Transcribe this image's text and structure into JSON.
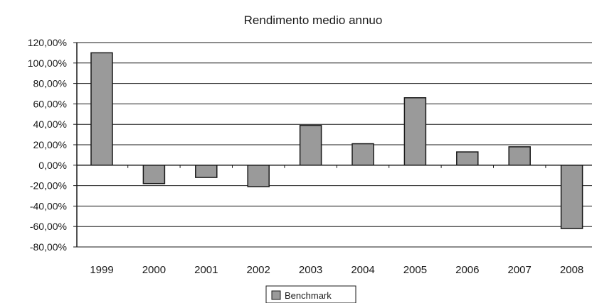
{
  "chart_data": {
    "type": "bar",
    "title": "Rendimento medio annuo",
    "xlabel": "",
    "ylabel": "",
    "categories": [
      "1999",
      "2000",
      "2001",
      "2002",
      "2003",
      "2004",
      "2005",
      "2006",
      "2007",
      "2008"
    ],
    "series": [
      {
        "name": "Benchmark",
        "values": [
          110,
          -18,
          -12,
          -21,
          39,
          21,
          66,
          13,
          18,
          -62
        ]
      }
    ],
    "ylim": [
      -80,
      120
    ],
    "yticks": [
      "120,00%",
      "100,00%",
      "80,00%",
      "60,00%",
      "40,00%",
      "20,00%",
      "0,00%",
      "-20,00%",
      "-40,00%",
      "-60,00%",
      "-80,00%"
    ],
    "grid": true,
    "legend_position": "bottom",
    "colors": {
      "bar": "#9a9a9a",
      "bar_stroke": "#1a1a1a",
      "grid": "#1a1a1a"
    }
  }
}
